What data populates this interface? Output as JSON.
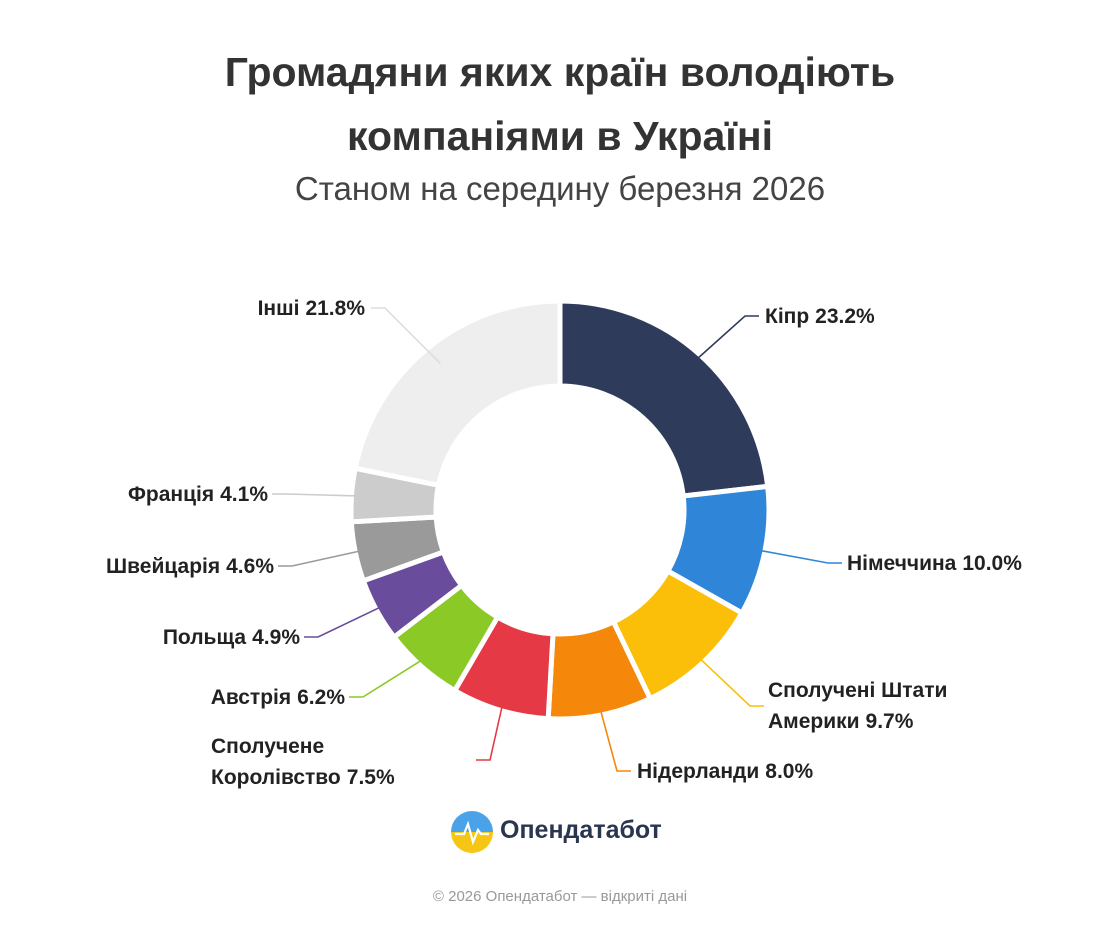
{
  "chart_data": {
    "type": "donut",
    "title": "Громадяни яких країн володіють компаніями в Україні",
    "subtitle": "Станом на середину березня 2026",
    "categories": [
      "Кіпр",
      "Німеччина",
      "Сполучені Штати Америки",
      "Нідерланди",
      "Сполучене Королівство",
      "Австрія",
      "Польща",
      "Швейцарія",
      "Франція",
      "Інші"
    ],
    "values": [
      23.2,
      10.0,
      9.7,
      8.0,
      7.5,
      6.2,
      4.9,
      4.6,
      4.1,
      21.8
    ],
    "value_labels": [
      "23.2%",
      "10.0%",
      "9.7%",
      "8.0%",
      "7.5%",
      "6.2%",
      "4.9%",
      "4.6%",
      "4.1%",
      "21.8%"
    ],
    "colors": [
      "#2e3b5b",
      "#2f86d8",
      "#fbbf0a",
      "#f5870a",
      "#e53945",
      "#8ac926",
      "#6a4c9c",
      "#9a9a9a",
      "#cccccc",
      "#eeeeee"
    ],
    "brand": "Опендатабот",
    "footer": "© 2026 Опендатабот — відкриті дані"
  }
}
